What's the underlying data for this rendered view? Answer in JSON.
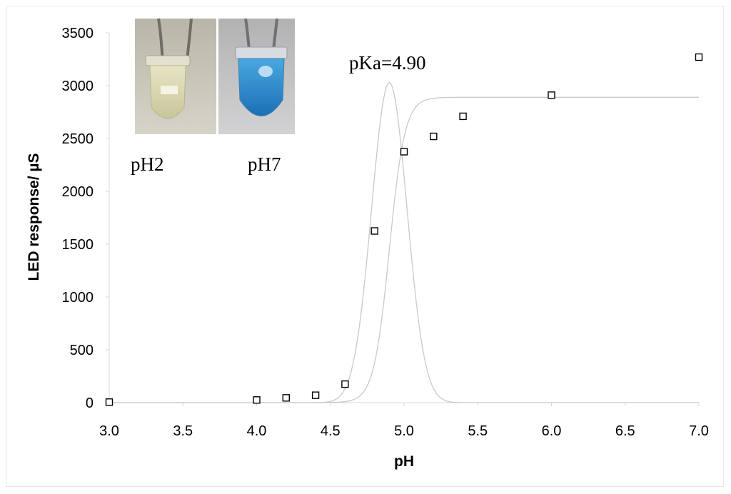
{
  "chart_data": {
    "type": "scatter",
    "xlabel": "pH",
    "ylabel": "LED response/ µS",
    "xlim": [
      3.0,
      7.0
    ],
    "ylim": [
      0,
      3500
    ],
    "x_ticks": [
      "3.0",
      "3.5",
      "4.0",
      "4.5",
      "5.0",
      "5.5",
      "6.0",
      "6.5",
      "7.0"
    ],
    "y_ticks": [
      "0",
      "500",
      "1000",
      "1500",
      "2000",
      "2500",
      "3000",
      "3500"
    ],
    "grid": false,
    "legend": "none",
    "annotation": "pKa=4.90",
    "series": [
      {
        "marker": "open-square",
        "x": [
          3.0,
          4.0,
          4.2,
          4.4,
          4.6,
          4.8,
          5.0,
          5.2,
          5.4,
          6.0,
          7.0
        ],
        "y": [
          5,
          25,
          45,
          70,
          175,
          1625,
          2375,
          2520,
          2710,
          2910,
          3270
        ]
      }
    ],
    "fitted_curves": [
      {
        "kind": "sigmoid",
        "pKa": 4.9,
        "top": 2890,
        "slope_per_pH": 19
      },
      {
        "kind": "derivative-peak",
        "center": 4.9,
        "peak": 3030,
        "width_sd": 0.12
      }
    ],
    "curve_color": "#c9c9c9",
    "marker_color": "#000000",
    "inset_photos": [
      {
        "label": "pH2",
        "liquid_color": "#d9d6b0"
      },
      {
        "label": "pH7",
        "liquid_color": "#2f8fcf"
      }
    ]
  }
}
